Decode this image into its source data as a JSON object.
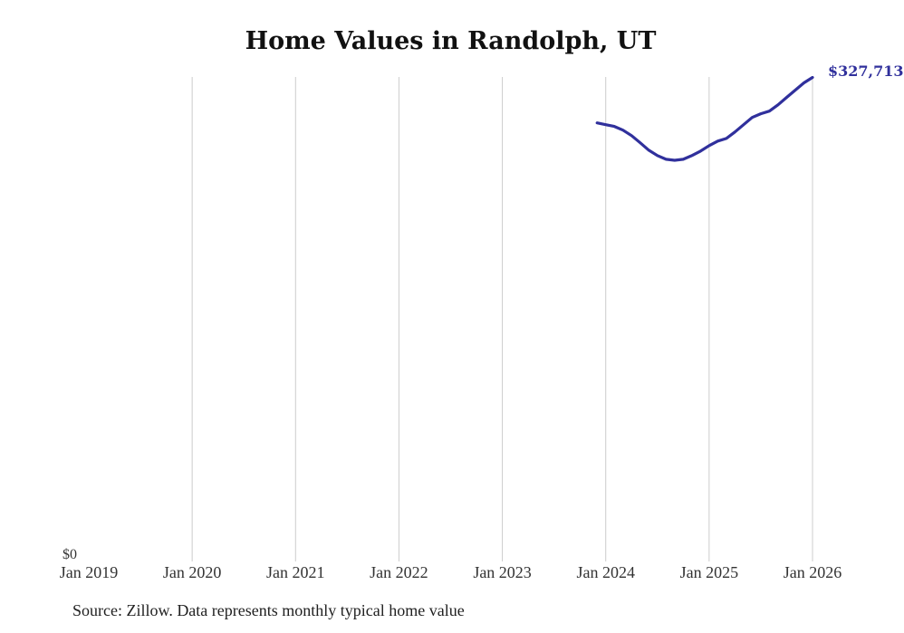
{
  "chart_data": {
    "type": "line",
    "title": "Home Values in Randolph, UT",
    "source_note": "Source: Zillow. Data represents monthly typical home value",
    "end_label": "$327,713",
    "y_tick_label": "$0",
    "x_tick_labels": [
      "Jan 2019",
      "Jan 2020",
      "Jan 2021",
      "Jan 2022",
      "Jan 2023",
      "Jan 2024",
      "Jan 2025",
      "Jan 2026"
    ],
    "gridline_ticks": [
      "Jan 2020",
      "Jan 2021",
      "Jan 2022",
      "Jan 2023",
      "Jan 2024",
      "Jan 2025",
      "Jan 2026"
    ],
    "xlim": [
      "Jan 2019",
      "Jan 2026"
    ],
    "ylim": [
      0,
      328000
    ],
    "grid": "vertical-only",
    "legend": "none",
    "x": [
      "Dec 2023",
      "Jan 2024",
      "Feb 2024",
      "Mar 2024",
      "Apr 2024",
      "May 2024",
      "Jun 2024",
      "Jul 2024",
      "Aug 2024",
      "Sep 2024",
      "Oct 2024",
      "Nov 2024",
      "Dec 2024",
      "Jan 2025",
      "Feb 2025",
      "Mar 2025",
      "Apr 2025",
      "May 2025",
      "Jun 2025",
      "Jul 2025",
      "Aug 2025",
      "Sep 2025",
      "Oct 2025",
      "Nov 2025",
      "Dec 2025",
      "Jan 2026"
    ],
    "series": [
      {
        "name": "Typical home value",
        "values": [
          296900,
          295700,
          294500,
          292000,
          288300,
          283400,
          278400,
          274800,
          272300,
          271600,
          272300,
          274800,
          277800,
          281500,
          284600,
          286400,
          290800,
          295700,
          300600,
          303100,
          304900,
          309200,
          314200,
          319100,
          324000,
          327713
        ]
      }
    ],
    "colors": {
      "line": "#30309c",
      "end_label": "#30309c",
      "gridline": "#cccccc",
      "axis_text": "#333333",
      "title_text": "#111111",
      "source_text": "#1f1f1f"
    }
  }
}
